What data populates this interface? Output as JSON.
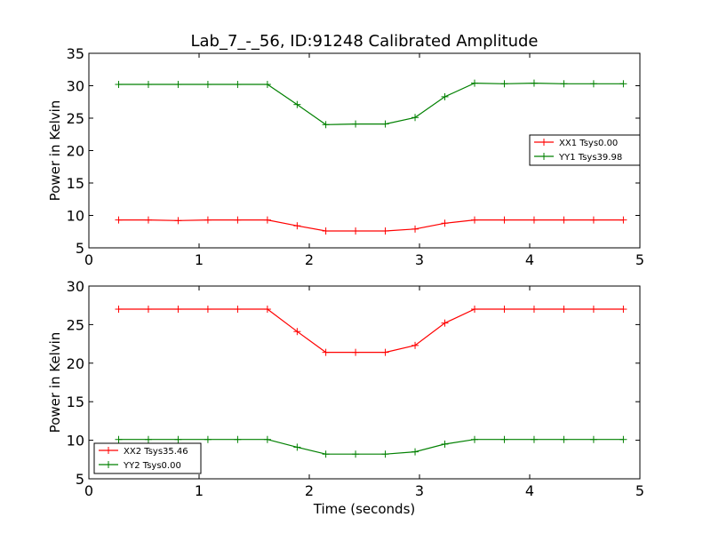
{
  "figure": {
    "title": "Lab_7_-_56, ID:91248 Calibrated Amplitude"
  },
  "chart_data": [
    {
      "type": "line",
      "title": "Lab_7_-_56, ID:91248 Calibrated Amplitude",
      "xlabel": "",
      "ylabel": "Power in Kelvin",
      "xlim": [
        0,
        5
      ],
      "ylim": [
        5,
        35
      ],
      "xticks": [
        0,
        1,
        2,
        3,
        4,
        5
      ],
      "yticks": [
        5,
        10,
        15,
        20,
        25,
        30,
        35
      ],
      "grid": false,
      "legend_position": "center-right",
      "x": [
        0.27,
        0.54,
        0.81,
        1.08,
        1.35,
        1.62,
        1.89,
        2.15,
        2.42,
        2.69,
        2.96,
        3.23,
        3.5,
        3.77,
        4.04,
        4.31,
        4.58,
        4.85
      ],
      "series": [
        {
          "name": "XX1 Tsys0.00",
          "color": "#ff0000",
          "values": [
            9.3,
            9.3,
            9.2,
            9.3,
            9.3,
            9.3,
            8.4,
            7.6,
            7.6,
            7.6,
            7.9,
            8.8,
            9.3,
            9.3,
            9.3,
            9.3,
            9.3,
            9.3
          ]
        },
        {
          "name": "YY1 Tsys39.98",
          "color": "#008000",
          "values": [
            30.2,
            30.2,
            30.2,
            30.2,
            30.2,
            30.2,
            27.1,
            24.0,
            24.1,
            24.1,
            25.1,
            28.3,
            30.4,
            30.3,
            30.4,
            30.3,
            30.3,
            30.3
          ]
        }
      ]
    },
    {
      "type": "line",
      "title": "",
      "xlabel": "Time (seconds)",
      "ylabel": "Power in Kelvin",
      "xlim": [
        0,
        5
      ],
      "ylim": [
        5,
        30
      ],
      "xticks": [
        0,
        1,
        2,
        3,
        4,
        5
      ],
      "yticks": [
        5,
        10,
        15,
        20,
        25,
        30
      ],
      "grid": false,
      "legend_position": "bottom-left",
      "x": [
        0.27,
        0.54,
        0.81,
        1.08,
        1.35,
        1.62,
        1.89,
        2.15,
        2.42,
        2.69,
        2.96,
        3.23,
        3.5,
        3.77,
        4.04,
        4.31,
        4.58,
        4.85
      ],
      "series": [
        {
          "name": "XX2 Tsys35.46",
          "color": "#ff0000",
          "values": [
            27.0,
            27.0,
            27.0,
            27.0,
            27.0,
            27.0,
            24.1,
            21.4,
            21.4,
            21.4,
            22.3,
            25.2,
            27.0,
            27.0,
            27.0,
            27.0,
            27.0,
            27.0
          ]
        },
        {
          "name": "YY2 Tsys0.00",
          "color": "#008000",
          "values": [
            10.1,
            10.1,
            10.1,
            10.1,
            10.1,
            10.1,
            9.1,
            8.2,
            8.2,
            8.2,
            8.5,
            9.5,
            10.1,
            10.1,
            10.1,
            10.1,
            10.1,
            10.1
          ]
        }
      ]
    }
  ]
}
